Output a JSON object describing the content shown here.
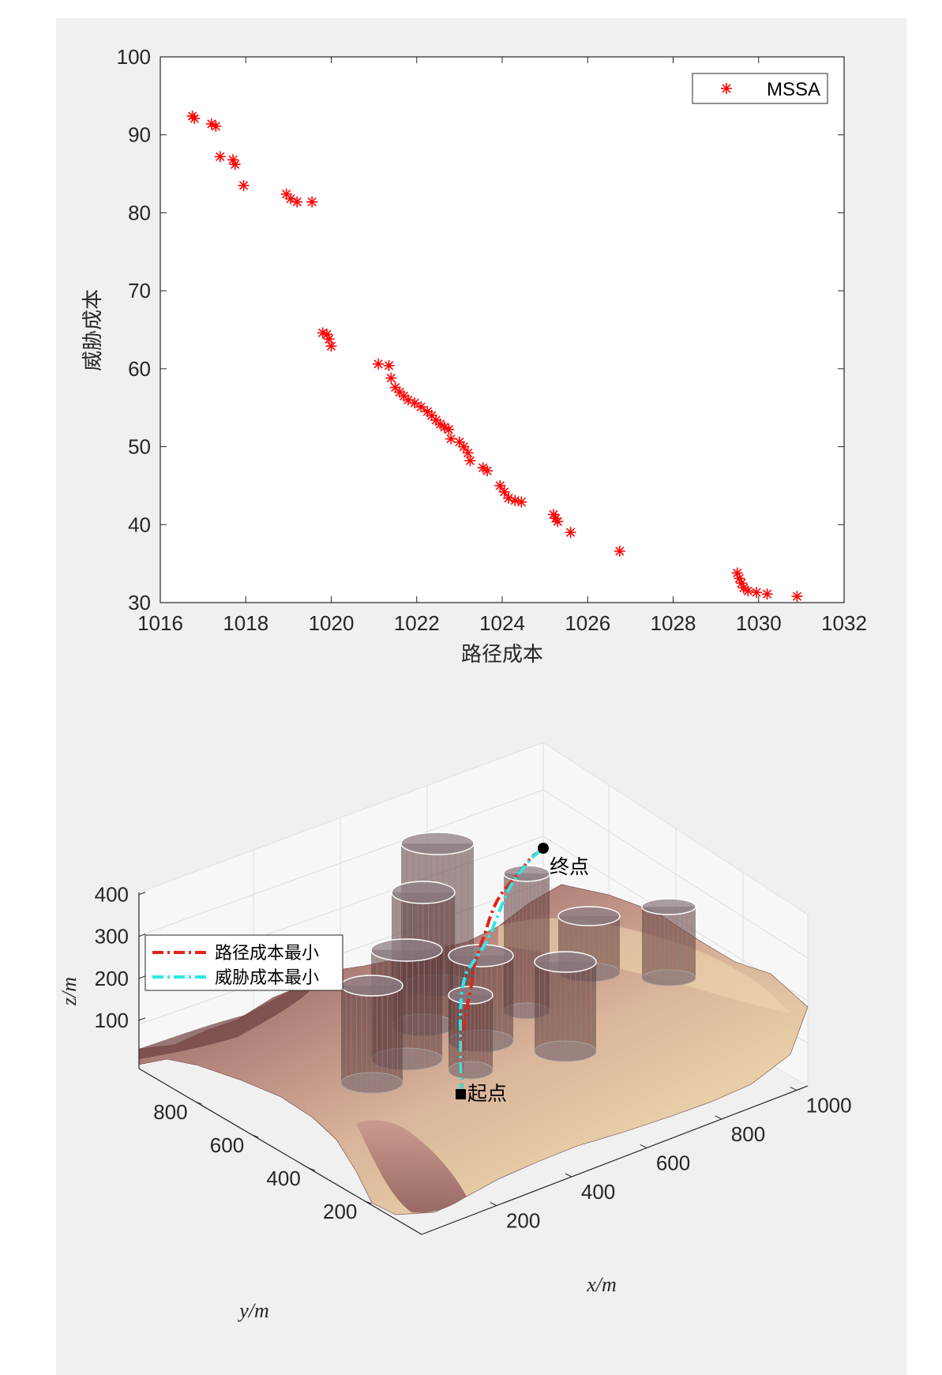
{
  "chart_data": [
    {
      "type": "scatter",
      "title": "",
      "xlabel": "路径成本",
      "ylabel": "威胁成本",
      "xlim": [
        1016,
        1032
      ],
      "ylim": [
        30,
        100
      ],
      "xticks": [
        "1016",
        "1018",
        "1020",
        "1022",
        "1024",
        "1026",
        "1028",
        "1030",
        "1032"
      ],
      "yticks": [
        "30",
        "40",
        "50",
        "60",
        "70",
        "80",
        "90",
        "100"
      ],
      "legend": {
        "placement": "top-right",
        "entries": [
          "MSSA"
        ]
      },
      "marker": "*",
      "color": "#ff0000",
      "grid": false,
      "series": [
        {
          "name": "MSSA",
          "points": [
            [
              1016.75,
              92.4
            ],
            [
              1016.8,
              92.1
            ],
            [
              1017.2,
              91.4
            ],
            [
              1017.3,
              91.1
            ],
            [
              1017.4,
              87.2
            ],
            [
              1017.7,
              86.8
            ],
            [
              1017.75,
              86.2
            ],
            [
              1017.95,
              83.5
            ],
            [
              1018.95,
              82.4
            ],
            [
              1019.05,
              81.8
            ],
            [
              1019.2,
              81.4
            ],
            [
              1019.55,
              81.4
            ],
            [
              1019.8,
              64.6
            ],
            [
              1019.9,
              64.4
            ],
            [
              1019.95,
              63.8
            ],
            [
              1020.0,
              62.9
            ],
            [
              1021.1,
              60.6
            ],
            [
              1021.35,
              60.4
            ],
            [
              1021.4,
              58.8
            ],
            [
              1021.5,
              57.6
            ],
            [
              1021.6,
              57.0
            ],
            [
              1021.7,
              56.5
            ],
            [
              1021.8,
              56.0
            ],
            [
              1021.95,
              55.6
            ],
            [
              1022.1,
              55.1
            ],
            [
              1022.25,
              54.5
            ],
            [
              1022.35,
              54.0
            ],
            [
              1022.45,
              53.4
            ],
            [
              1022.55,
              52.9
            ],
            [
              1022.65,
              52.5
            ],
            [
              1022.75,
              52.2
            ],
            [
              1022.8,
              51.0
            ],
            [
              1023.0,
              50.6
            ],
            [
              1023.1,
              50.0
            ],
            [
              1023.2,
              49.2
            ],
            [
              1023.25,
              48.2
            ],
            [
              1023.55,
              47.3
            ],
            [
              1023.65,
              46.9
            ],
            [
              1023.95,
              45.0
            ],
            [
              1024.05,
              44.2
            ],
            [
              1024.15,
              43.4
            ],
            [
              1024.3,
              43.1
            ],
            [
              1024.45,
              42.9
            ],
            [
              1025.2,
              41.3
            ],
            [
              1025.25,
              40.8
            ],
            [
              1025.3,
              40.4
            ],
            [
              1025.6,
              39.0
            ],
            [
              1026.75,
              36.6
            ],
            [
              1029.5,
              33.8
            ],
            [
              1029.55,
              33.1
            ],
            [
              1029.6,
              32.5
            ],
            [
              1029.65,
              31.9
            ],
            [
              1029.75,
              31.5
            ],
            [
              1029.95,
              31.3
            ],
            [
              1030.2,
              31.1
            ],
            [
              1030.9,
              30.8
            ]
          ]
        }
      ]
    },
    {
      "type": "surface3d",
      "title": "",
      "xlabel": "x/m",
      "ylabel": "y/m",
      "zlabel": "z/m",
      "xlim": [
        0,
        1000
      ],
      "ylim": [
        0,
        1000
      ],
      "zlim": [
        0,
        400
      ],
      "xticks": [
        "200",
        "400",
        "600",
        "800",
        "1000"
      ],
      "yticks": [
        "200",
        "400",
        "600",
        "800"
      ],
      "zticks": [
        "100",
        "200",
        "300",
        "400"
      ],
      "legend": {
        "placement": "left",
        "entries": [
          "路径成本最小",
          "威胁成本最小"
        ]
      },
      "series": [
        {
          "name": "路径成本最小",
          "color": "#ff0000",
          "style": "dash-dot"
        },
        {
          "name": "威胁成本最小",
          "color": "#00ffff",
          "style": "dash-dot"
        }
      ],
      "annotations": {
        "start": "起点",
        "end": "终点"
      }
    }
  ]
}
